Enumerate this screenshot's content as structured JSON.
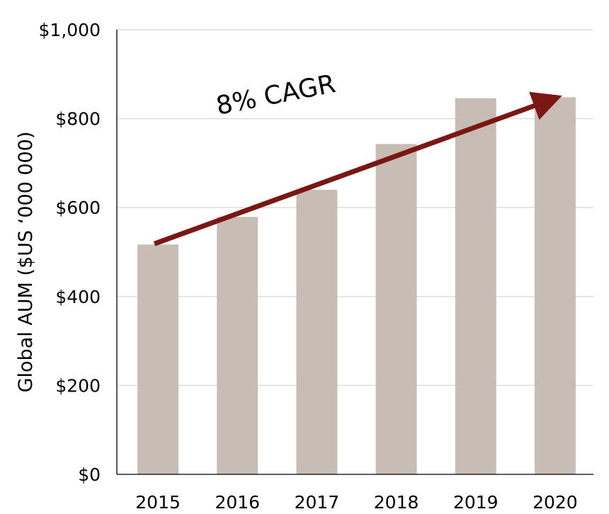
{
  "chart_data": {
    "type": "bar",
    "categories": [
      "2015",
      "2016",
      "2017",
      "2018",
      "2019",
      "2020"
    ],
    "values": [
      517,
      579,
      640,
      743,
      846,
      848
    ],
    "ylabel": "Global AUM ($US ‘000 000)",
    "xlabel": "",
    "ylim": [
      0,
      1000
    ],
    "yticks": [
      0,
      200,
      400,
      600,
      800,
      1000
    ],
    "ytick_labels": [
      "$0",
      "$200",
      "$400",
      "$600",
      "$800",
      "$1,000"
    ],
    "grid": true,
    "legend": "none",
    "annotation": {
      "text": "8% CAGR",
      "arrow_start": {
        "category": "2015",
        "value": 517
      },
      "arrow_end": {
        "category": "2020",
        "value": 848
      }
    },
    "colors": {
      "bar": "#c8bdb4",
      "arrow": "#7a1712",
      "grid": "#d9d9d9",
      "axis": "#000000"
    }
  }
}
